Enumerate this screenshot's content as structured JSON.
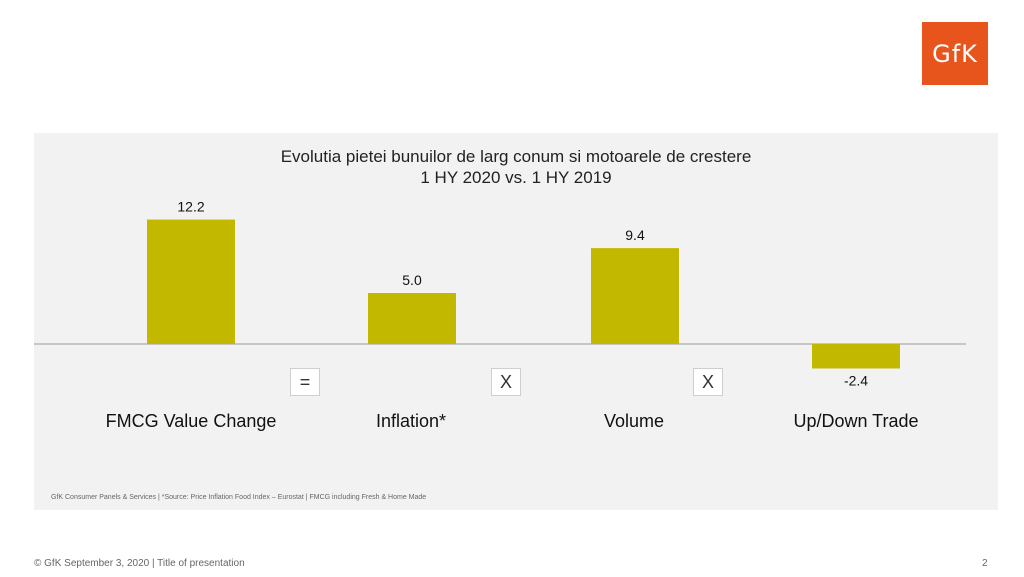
{
  "logo": {
    "text": "GfK",
    "color": "#e8551c"
  },
  "chart_data": {
    "type": "bar",
    "title_lines": [
      "Evolutia pietei bunuilor de larg conum si motoarele de crestere",
      "1 HY 2020 vs. 1 HY 2019"
    ],
    "categories": [
      "FMCG Value Change",
      "Inflation*",
      "Volume",
      "Up/Down Trade"
    ],
    "values": [
      12.2,
      5.0,
      9.4,
      -2.4
    ],
    "value_labels": [
      "12.2",
      "5.0",
      "9.4",
      "-2.4"
    ],
    "operators": [
      "=",
      "X",
      "X"
    ],
    "bar_color": "#c3b800",
    "ylim": [
      -4,
      14
    ],
    "grid": false
  },
  "source_note": "GfK Consumer Panels & Services | *Source: Price Inflation Food Index – Eurostat | FMCG including Fresh & Home Made",
  "footer": {
    "text": "© GfK September 3, 2020 | Title of presentation",
    "page": "2"
  }
}
